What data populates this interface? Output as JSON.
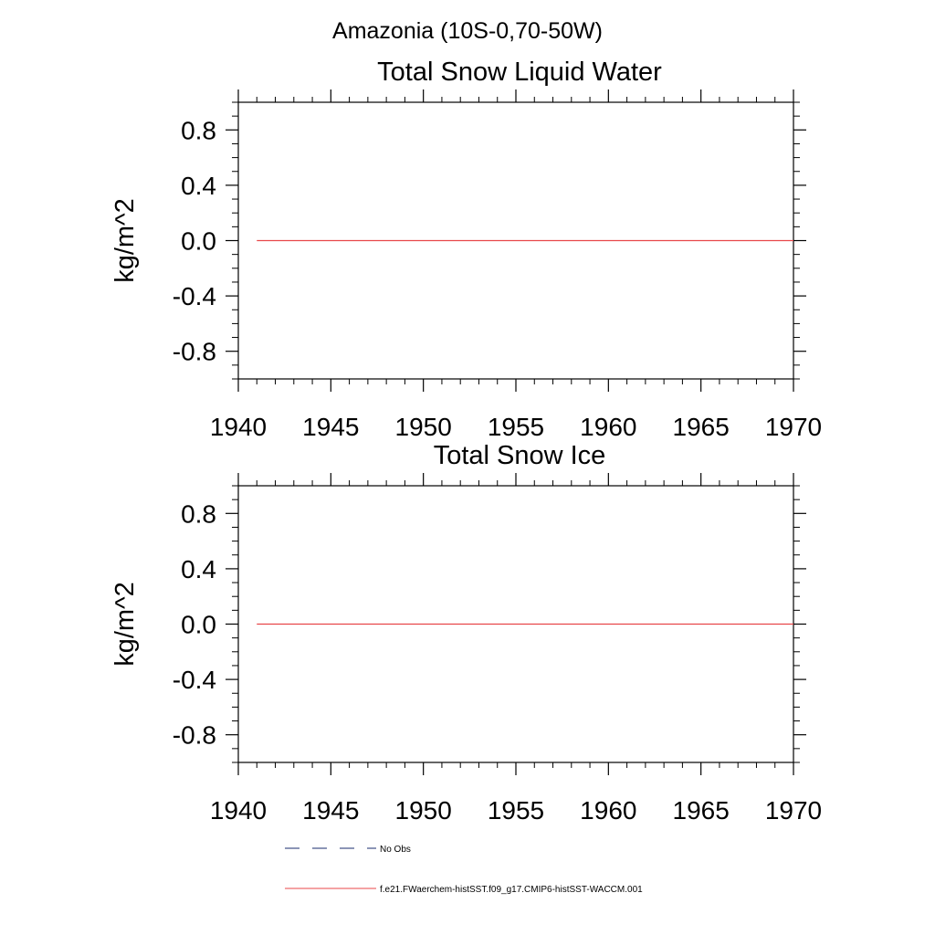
{
  "page_title": "Amazonia (10S-0,70-50W)",
  "colors": {
    "series_model": "#e8474a",
    "series_obs": "#1a2b6d",
    "axis": "#000000"
  },
  "chart_data": [
    {
      "type": "line",
      "title": "Total Snow Liquid Water",
      "xlabel": "",
      "ylabel": "kg/m^2",
      "xlim": [
        1940,
        1970
      ],
      "ylim": [
        -1.0,
        1.0
      ],
      "xticks": [
        1940,
        1945,
        1950,
        1955,
        1960,
        1965,
        1970
      ],
      "yticks": [
        0.8,
        0.4,
        0.0,
        -0.4,
        -0.8
      ],
      "x_tick_labels": [
        "1940",
        "1945",
        "1950",
        "1955",
        "1960",
        "1965",
        "1970"
      ],
      "y_tick_labels": [
        "0.8",
        "0.4",
        "0.0",
        "-0.4",
        "-0.8"
      ],
      "grid": false,
      "series": [
        {
          "name": "f.e21.FWaerchem-histSST.f09_g17.CMIP6-histSST-WACCM.001",
          "style": "solid",
          "color": "#e8474a",
          "x": [
            1941,
            1970
          ],
          "y": [
            0.0,
            0.0
          ]
        }
      ]
    },
    {
      "type": "line",
      "title": "Total Snow Ice",
      "xlabel": "",
      "ylabel": "kg/m^2",
      "xlim": [
        1940,
        1970
      ],
      "ylim": [
        -1.0,
        1.0
      ],
      "xticks": [
        1940,
        1945,
        1950,
        1955,
        1960,
        1965,
        1970
      ],
      "yticks": [
        0.8,
        0.4,
        0.0,
        -0.4,
        -0.8
      ],
      "x_tick_labels": [
        "1940",
        "1945",
        "1950",
        "1955",
        "1960",
        "1965",
        "1970"
      ],
      "y_tick_labels": [
        "0.8",
        "0.4",
        "0.0",
        "-0.4",
        "-0.8"
      ],
      "grid": false,
      "series": [
        {
          "name": "f.e21.FWaerchem-histSST.f09_g17.CMIP6-histSST-WACCM.001",
          "style": "solid",
          "color": "#e8474a",
          "x": [
            1941,
            1970
          ],
          "y": [
            0.0,
            0.0
          ]
        }
      ]
    }
  ],
  "legend": {
    "placement": "bottom",
    "entries": [
      {
        "label": "No Obs",
        "style": "dashed",
        "color": "#1a2b6d"
      },
      {
        "label": "f.e21.FWaerchem-histSST.f09_g17.CMIP6-histSST-WACCM.001",
        "style": "solid",
        "color": "#e8474a"
      }
    ]
  }
}
